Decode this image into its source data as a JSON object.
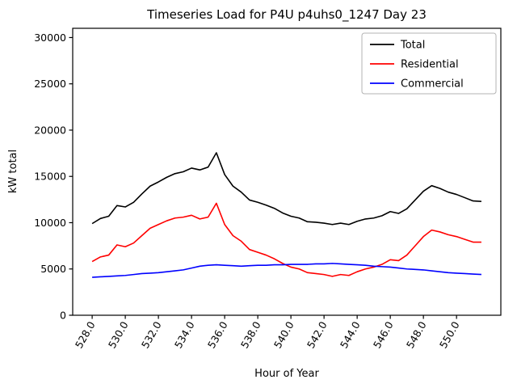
{
  "chart_data": {
    "type": "line",
    "title": "Timeseries Load for P4U p4uhs0_1247  Day 23",
    "xlabel": "Hour of Year",
    "ylabel": "kW total",
    "xlim": [
      526.825,
      552.675
    ],
    "ylim": [
      0,
      31000
    ],
    "x_ticks": [
      528.0,
      530.0,
      532.0,
      534.0,
      536.0,
      538.0,
      540.0,
      542.0,
      544.0,
      546.0,
      548.0,
      550.0
    ],
    "y_ticks": [
      0,
      5000,
      10000,
      15000,
      20000,
      25000,
      30000
    ],
    "grid": false,
    "legend_position": "upper right",
    "x": [
      528.0,
      528.5,
      529.0,
      529.5,
      530.0,
      530.5,
      531.0,
      531.5,
      532.0,
      532.5,
      533.0,
      533.5,
      534.0,
      534.5,
      535.0,
      535.5,
      536.0,
      536.5,
      537.0,
      537.5,
      538.0,
      538.5,
      539.0,
      539.5,
      540.0,
      540.5,
      541.0,
      541.5,
      542.0,
      542.5,
      543.0,
      543.5,
      544.0,
      544.5,
      545.0,
      545.5,
      546.0,
      546.5,
      547.0,
      547.5,
      548.0,
      548.5,
      549.0,
      549.5,
      550.0,
      550.5,
      551.0,
      551.5
    ],
    "series": [
      {
        "name": "Total",
        "color": "#000000",
        "values": [
          9900,
          10450,
          10700,
          11850,
          11700,
          12200,
          13100,
          13950,
          14400,
          14900,
          15300,
          15500,
          15900,
          15700,
          16000,
          17550,
          15200,
          13950,
          13300,
          12450,
          12200,
          11900,
          11550,
          11050,
          10700,
          10500,
          10100,
          10050,
          9950,
          9800,
          9950,
          9800,
          10150,
          10400,
          10500,
          10750,
          11200,
          11000,
          11500,
          12450,
          13400,
          14000,
          13700,
          13300,
          13050,
          12700,
          12350,
          12300
        ]
      },
      {
        "name": "Residential",
        "color": "#ff0000",
        "values": [
          5800,
          6300,
          6500,
          7600,
          7400,
          7800,
          8600,
          9400,
          9800,
          10200,
          10500,
          10600,
          10800,
          10400,
          10600,
          12100,
          9800,
          8600,
          8000,
          7100,
          6800,
          6500,
          6100,
          5600,
          5200,
          5000,
          4600,
          4500,
          4400,
          4200,
          4400,
          4300,
          4700,
          5000,
          5200,
          5500,
          6000,
          5900,
          6500,
          7500,
          8500,
          9200,
          9000,
          8700,
          8500,
          8200,
          7900,
          7900
        ]
      },
      {
        "name": "Commercial",
        "color": "#0000ff",
        "values": [
          4100,
          4150,
          4200,
          4250,
          4300,
          4400,
          4500,
          4550,
          4600,
          4700,
          4800,
          4900,
          5100,
          5300,
          5400,
          5450,
          5400,
          5350,
          5300,
          5350,
          5400,
          5400,
          5450,
          5450,
          5500,
          5500,
          5500,
          5550,
          5550,
          5600,
          5550,
          5500,
          5450,
          5400,
          5300,
          5250,
          5200,
          5100,
          5000,
          4950,
          4900,
          4800,
          4700,
          4600,
          4550,
          4500,
          4450,
          4400
        ]
      }
    ]
  },
  "legend": {
    "entries": [
      "Total",
      "Residential",
      "Commercial"
    ]
  }
}
